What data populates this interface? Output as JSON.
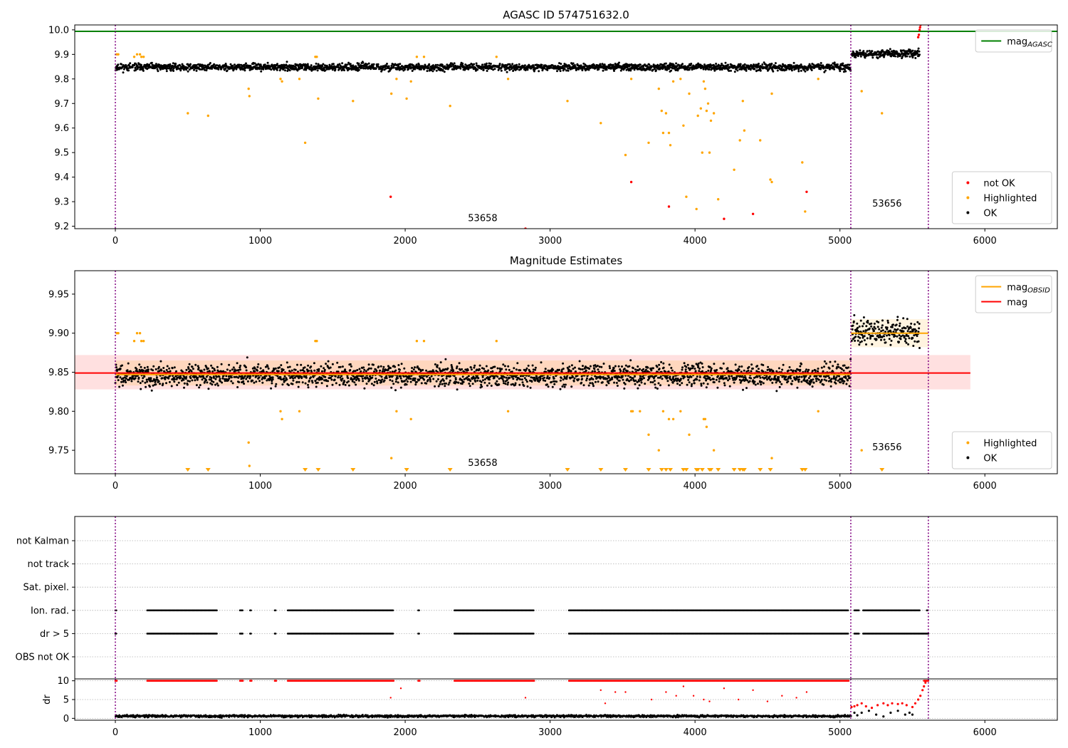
{
  "colors": {
    "ok": "#000000",
    "highlighted": "#ffa500",
    "not_ok": "#ff0000",
    "agasc_line": "#008000",
    "mag_line": "#ff0000",
    "mag_obsid_line": "#ffa500",
    "obs_boundary": "#800080",
    "grid": "#b0b0b0"
  },
  "chart_data": [
    {
      "id": "top",
      "type": "scatter",
      "title": "AGASC ID 574751632.0",
      "xlim": [
        -280,
        6500
      ],
      "ylim": [
        9.19,
        10.02
      ],
      "x_ticks": [
        0,
        1000,
        2000,
        3000,
        4000,
        5000,
        6000
      ],
      "y_ticks": [
        9.2,
        9.3,
        9.4,
        9.5,
        9.6,
        9.7,
        9.8,
        9.9,
        10.0
      ],
      "obs_boundaries": [
        0,
        5075,
        5610
      ],
      "obs_labels": [
        {
          "text": "53658",
          "x": 2535,
          "y": 9.22
        },
        {
          "text": "53656",
          "x": 5325,
          "y": 9.28
        }
      ],
      "hlines": [
        {
          "name": "mag_AGASC",
          "y": 9.994,
          "x0": -280,
          "x1": 6500,
          "color": "#008000"
        }
      ],
      "ok_segments": [
        {
          "x0": 0,
          "x1": 5075,
          "center": 9.848,
          "spread": 0.014
        },
        {
          "x0": 5080,
          "x1": 5550,
          "center": 9.903,
          "spread": 0.016
        }
      ],
      "highlighted": [
        [
          10,
          9.9
        ],
        [
          20,
          9.9
        ],
        [
          130,
          9.89
        ],
        [
          150,
          9.9
        ],
        [
          170,
          9.9
        ],
        [
          180,
          9.89
        ],
        [
          195,
          9.89
        ],
        [
          500,
          9.66
        ],
        [
          640,
          9.65
        ],
        [
          920,
          9.76
        ],
        [
          925,
          9.73
        ],
        [
          1140,
          9.8
        ],
        [
          1150,
          9.79
        ],
        [
          1270,
          9.8
        ],
        [
          1310,
          9.54
        ],
        [
          1380,
          9.89
        ],
        [
          1390,
          9.89
        ],
        [
          1400,
          9.72
        ],
        [
          1640,
          9.71
        ],
        [
          1905,
          9.74
        ],
        [
          1940,
          9.8
        ],
        [
          2010,
          9.72
        ],
        [
          2040,
          9.79
        ],
        [
          2080,
          9.89
        ],
        [
          2130,
          9.89
        ],
        [
          2310,
          9.69
        ],
        [
          2630,
          9.89
        ],
        [
          2710,
          9.8
        ],
        [
          3120,
          9.71
        ],
        [
          3350,
          9.62
        ],
        [
          3520,
          9.49
        ],
        [
          3560,
          9.8
        ],
        [
          3680,
          9.54
        ],
        [
          3750,
          9.76
        ],
        [
          3770,
          9.67
        ],
        [
          3780,
          9.58
        ],
        [
          3800,
          9.66
        ],
        [
          3820,
          9.58
        ],
        [
          3830,
          9.53
        ],
        [
          3850,
          9.79
        ],
        [
          3900,
          9.8
        ],
        [
          3920,
          9.61
        ],
        [
          3940,
          9.32
        ],
        [
          3960,
          9.74
        ],
        [
          4010,
          9.27
        ],
        [
          4020,
          9.65
        ],
        [
          4040,
          9.68
        ],
        [
          4050,
          9.5
        ],
        [
          4060,
          9.79
        ],
        [
          4070,
          9.76
        ],
        [
          4080,
          9.67
        ],
        [
          4090,
          9.7
        ],
        [
          4100,
          9.5
        ],
        [
          4110,
          9.63
        ],
        [
          4130,
          9.66
        ],
        [
          4160,
          9.31
        ],
        [
          4270,
          9.43
        ],
        [
          4310,
          9.55
        ],
        [
          4330,
          9.71
        ],
        [
          4340,
          9.59
        ],
        [
          4450,
          9.55
        ],
        [
          4520,
          9.39
        ],
        [
          4530,
          9.38
        ],
        [
          4530,
          9.74
        ],
        [
          4740,
          9.46
        ],
        [
          4760,
          9.26
        ],
        [
          4850,
          9.8
        ],
        [
          5150,
          9.75
        ],
        [
          5290,
          9.66
        ]
      ],
      "not_ok": [
        [
          1900,
          9.32
        ],
        [
          2830,
          9.19
        ],
        [
          3560,
          9.38
        ],
        [
          3820,
          9.28
        ],
        [
          4200,
          9.23
        ],
        [
          4400,
          9.25
        ],
        [
          4770,
          9.34
        ],
        [
          5540,
          9.97
        ],
        [
          5545,
          9.98
        ],
        [
          5550,
          10.0
        ],
        [
          5553,
          10.01
        ],
        [
          5556,
          10.02
        ]
      ],
      "legends": [
        {
          "position": "upper right",
          "entries": [
            {
              "label": "mag",
              "sub": "AGASC",
              "kind": "line",
              "color": "#008000"
            }
          ]
        },
        {
          "position": "lower right",
          "entries": [
            {
              "label": "not OK",
              "kind": "dot",
              "color": "#ff0000"
            },
            {
              "label": "Highlighted",
              "kind": "dot",
              "color": "#ffa500"
            },
            {
              "label": "OK",
              "kind": "dot",
              "color": "#000000"
            }
          ]
        }
      ]
    },
    {
      "id": "middle",
      "type": "scatter",
      "title": "Magnitude Estimates",
      "xlim": [
        -280,
        6500
      ],
      "ylim": [
        9.72,
        9.98
      ],
      "x_ticks": [
        0,
        1000,
        2000,
        3000,
        4000,
        5000,
        6000
      ],
      "y_ticks": [
        9.75,
        9.8,
        9.85,
        9.9,
        9.95
      ],
      "obs_boundaries": [
        0,
        5075,
        5610
      ],
      "obs_labels": [
        {
          "text": "53658",
          "x": 2535,
          "y": 9.73
        },
        {
          "text": "53656",
          "x": 5325,
          "y": 9.75
        }
      ],
      "bands": [
        {
          "x0": -280,
          "x1": 5900,
          "y0": 9.828,
          "y1": 9.872,
          "color": "#ff0000",
          "opacity": 0.12
        },
        {
          "x0": 0,
          "x1": 5075,
          "y0": 9.833,
          "y1": 9.865,
          "color": "#ffa500",
          "opacity": 0.15
        },
        {
          "x0": 5075,
          "x1": 5610,
          "y0": 9.882,
          "y1": 9.918,
          "color": "#ffa500",
          "opacity": 0.12
        }
      ],
      "hlines": [
        {
          "name": "mag",
          "y": 9.849,
          "x0": -280,
          "x1": 5900,
          "color": "#ff0000"
        },
        {
          "name": "mag_OBSID_1",
          "y": 9.847,
          "x0": 0,
          "x1": 5075,
          "color": "#ffa500"
        },
        {
          "name": "mag_OBSID_2",
          "y": 9.9,
          "x0": 5075,
          "x1": 5610,
          "color": "#ffa500"
        }
      ],
      "ok_segments": [
        {
          "x0": 0,
          "x1": 5075,
          "center": 9.846,
          "spread": 0.014
        },
        {
          "x0": 5080,
          "x1": 5550,
          "center": 9.902,
          "spread": 0.017
        }
      ],
      "highlighted": [
        [
          10,
          9.9
        ],
        [
          20,
          9.9
        ],
        [
          130,
          9.89
        ],
        [
          150,
          9.9
        ],
        [
          170,
          9.9
        ],
        [
          180,
          9.89
        ],
        [
          195,
          9.89
        ],
        [
          920,
          9.76
        ],
        [
          925,
          9.73
        ],
        [
          1140,
          9.8
        ],
        [
          1150,
          9.79
        ],
        [
          1270,
          9.8
        ],
        [
          1380,
          9.89
        ],
        [
          1390,
          9.89
        ],
        [
          1905,
          9.74
        ],
        [
          1940,
          9.8
        ],
        [
          2040,
          9.79
        ],
        [
          2080,
          9.89
        ],
        [
          2130,
          9.89
        ],
        [
          2630,
          9.89
        ],
        [
          2710,
          9.8
        ],
        [
          3560,
          9.8
        ],
        [
          3570,
          9.8
        ],
        [
          3620,
          9.8
        ],
        [
          3680,
          9.77
        ],
        [
          3750,
          9.75
        ],
        [
          3780,
          9.8
        ],
        [
          3820,
          9.79
        ],
        [
          3850,
          9.79
        ],
        [
          3900,
          9.8
        ],
        [
          3960,
          9.77
        ],
        [
          4060,
          9.79
        ],
        [
          4070,
          9.79
        ],
        [
          4080,
          9.78
        ],
        [
          4130,
          9.75
        ],
        [
          4530,
          9.74
        ],
        [
          4850,
          9.8
        ],
        [
          5150,
          9.75
        ]
      ],
      "lower_limit_markers": [
        500,
        640,
        1310,
        1400,
        1640,
        2010,
        2310,
        3120,
        3350,
        3520,
        3680,
        3770,
        3800,
        3830,
        3920,
        3940,
        4010,
        4020,
        4050,
        4100,
        4110,
        4160,
        4270,
        4310,
        4330,
        4340,
        4450,
        4520,
        4740,
        4760,
        5290
      ],
      "legends": [
        {
          "position": "upper right",
          "entries": [
            {
              "label": "mag",
              "sub": "OBSID",
              "kind": "line",
              "color": "#ffa500"
            },
            {
              "label": "mag",
              "kind": "line",
              "color": "#ff0000"
            }
          ]
        },
        {
          "position": "lower right",
          "entries": [
            {
              "label": "Highlighted",
              "kind": "dot",
              "color": "#ffa500"
            },
            {
              "label": "OK",
              "kind": "dot",
              "color": "#000000"
            }
          ]
        }
      ]
    },
    {
      "id": "flags",
      "type": "scatter",
      "xlim": [
        -280,
        6500
      ],
      "categories": [
        "not Kalman",
        "not track",
        "Sat. pixel.",
        "Ion. rad.",
        "dr > 5",
        "OBS not OK"
      ],
      "obs_boundaries": [
        0,
        5075,
        5610
      ],
      "flag_rows": [
        {
          "category": "Ion. rad.",
          "color": "#000000",
          "ranges": [
            [
              0,
              10
            ],
            [
              220,
              700
            ],
            [
              860,
              880
            ],
            [
              930,
              940
            ],
            [
              1100,
              1110
            ],
            [
              1190,
              1920
            ],
            [
              2090,
              2100
            ],
            [
              2340,
              2890
            ],
            [
              3130,
              5060
            ],
            [
              5100,
              5130
            ],
            [
              5160,
              5550
            ],
            [
              5600,
              5610
            ]
          ]
        },
        {
          "category": "dr > 5",
          "color": "#000000",
          "ranges": [
            [
              0,
              10
            ],
            [
              220,
              700
            ],
            [
              860,
              880
            ],
            [
              930,
              940
            ],
            [
              1100,
              1110
            ],
            [
              1190,
              1920
            ],
            [
              2090,
              2100
            ],
            [
              2340,
              2890
            ],
            [
              3130,
              5060
            ],
            [
              5100,
              5130
            ],
            [
              5160,
              5610
            ]
          ]
        }
      ]
    },
    {
      "id": "dr",
      "type": "scatter",
      "ylabel": "dr",
      "xlim": [
        -280,
        6500
      ],
      "ylim": [
        -0.5,
        10.5
      ],
      "x_ticks": [
        0,
        1000,
        2000,
        3000,
        4000,
        5000,
        6000
      ],
      "y_ticks": [
        0,
        5,
        10
      ],
      "obs_boundaries": [
        0,
        5075,
        5610
      ],
      "capped_ranges": [
        [
          0,
          10
        ],
        [
          220,
          700
        ],
        [
          860,
          880
        ],
        [
          930,
          940
        ],
        [
          1100,
          1110
        ],
        [
          1190,
          1920
        ],
        [
          2090,
          2100
        ],
        [
          2340,
          2890
        ],
        [
          3130,
          5060
        ],
        [
          5580,
          5610
        ]
      ],
      "cap_value": 10,
      "scattered_red": [
        [
          1900,
          5.5
        ],
        [
          1970,
          8
        ],
        [
          2830,
          5.5
        ],
        [
          3350,
          7.5
        ],
        [
          3380,
          4
        ],
        [
          3450,
          7
        ],
        [
          3520,
          7
        ],
        [
          3700,
          5
        ],
        [
          3800,
          7
        ],
        [
          3870,
          6
        ],
        [
          3920,
          8.5
        ],
        [
          3990,
          6
        ],
        [
          4060,
          5
        ],
        [
          4100,
          4.5
        ],
        [
          4200,
          8
        ],
        [
          4300,
          5
        ],
        [
          4400,
          7.5
        ],
        [
          4500,
          4.5
        ],
        [
          4600,
          6
        ],
        [
          4700,
          5.5
        ],
        [
          4770,
          7
        ]
      ],
      "ok_baseline": {
        "x0": 0,
        "x1": 5075,
        "center": 0.6,
        "spread": 0.3
      },
      "tail_black": [
        [
          5100,
          1.5
        ],
        [
          5120,
          0.8
        ],
        [
          5150,
          1.5
        ],
        [
          5200,
          2
        ],
        [
          5250,
          1
        ],
        [
          5300,
          0.5
        ],
        [
          5350,
          1.5
        ],
        [
          5400,
          2
        ],
        [
          5450,
          1
        ],
        [
          5480,
          1.5
        ],
        [
          5500,
          1
        ]
      ],
      "tail_red": [
        [
          5080,
          3
        ],
        [
          5100,
          3.2
        ],
        [
          5120,
          3.5
        ],
        [
          5150,
          4
        ],
        [
          5180,
          3.2
        ],
        [
          5220,
          2.8
        ],
        [
          5260,
          3.5
        ],
        [
          5300,
          4
        ],
        [
          5330,
          3.5
        ],
        [
          5360,
          4
        ],
        [
          5400,
          3.8
        ],
        [
          5430,
          4
        ],
        [
          5460,
          3.5
        ],
        [
          5500,
          3
        ],
        [
          5520,
          4
        ],
        [
          5540,
          5
        ],
        [
          5555,
          6
        ],
        [
          5570,
          7.5
        ],
        [
          5580,
          8.5
        ],
        [
          5590,
          9.5
        ]
      ]
    }
  ]
}
